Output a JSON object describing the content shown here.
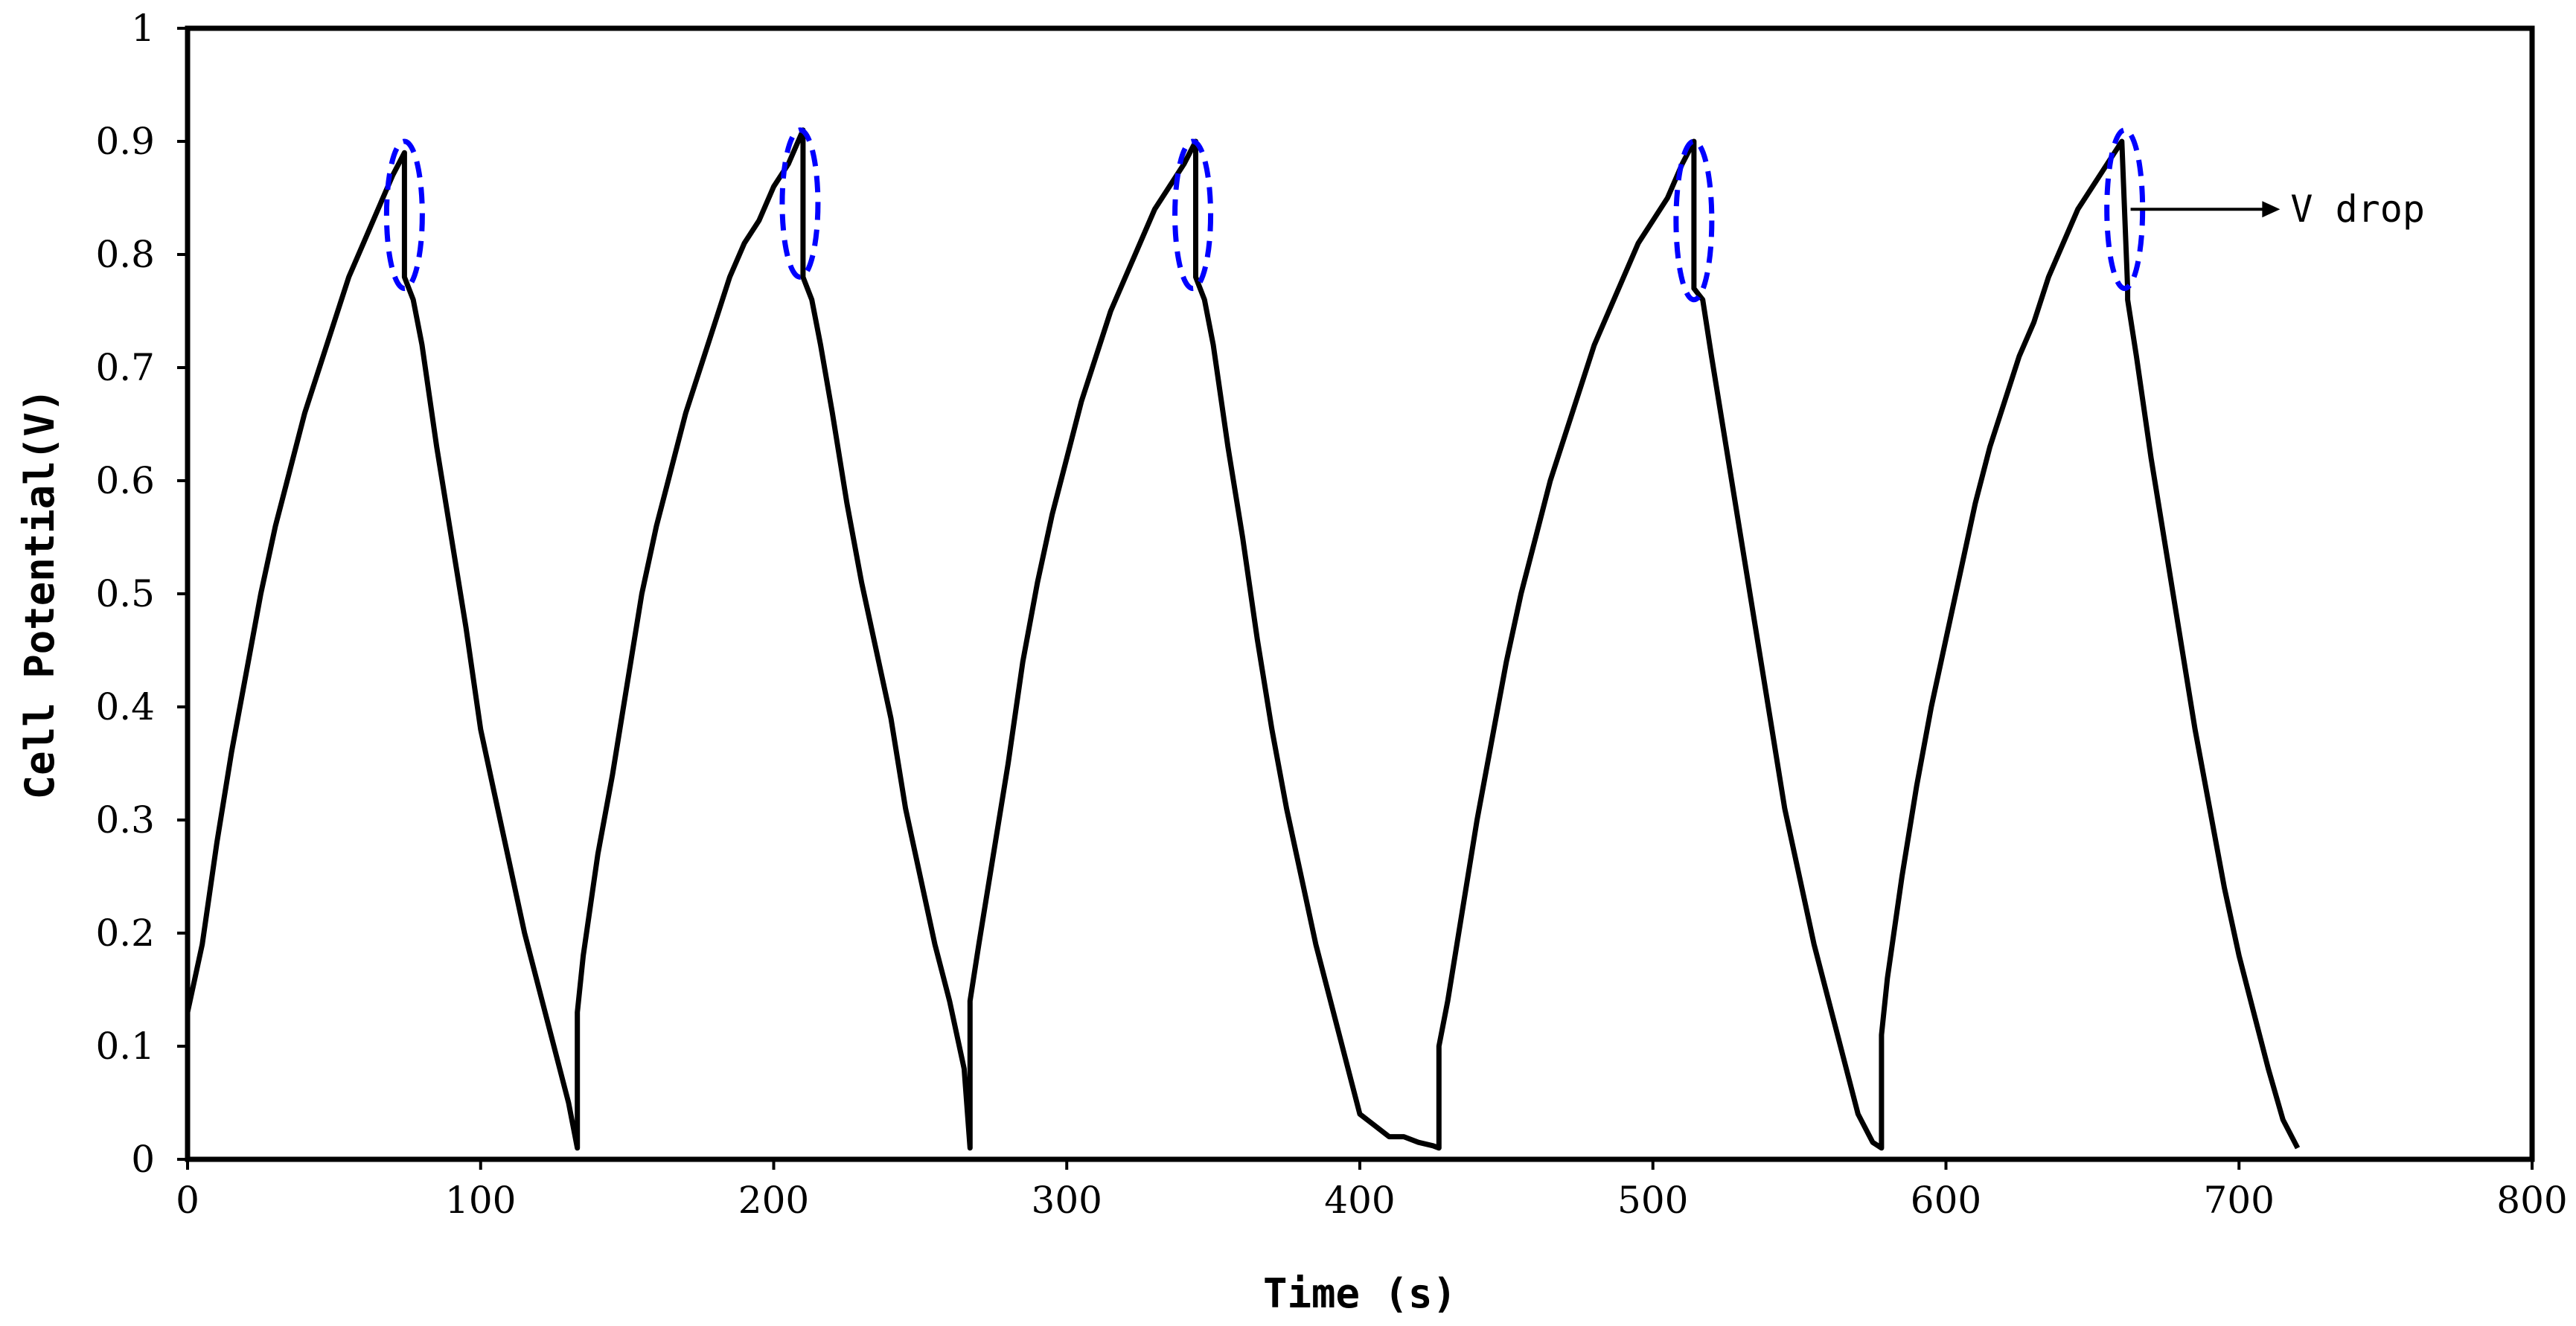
{
  "chart_data": {
    "type": "line",
    "title": "",
    "xlabel": "Time (s)",
    "ylabel": "Cell Potential(V)",
    "xlim": [
      0,
      800
    ],
    "ylim": [
      0,
      1
    ],
    "xticks": [
      0,
      100,
      200,
      300,
      400,
      500,
      600,
      700,
      800
    ],
    "xtick_labels": [
      "0",
      "100",
      "200",
      "300",
      "400",
      "500",
      "600",
      "700",
      "800"
    ],
    "yticks": [
      0,
      0.1,
      0.2,
      0.3,
      0.4,
      0.5,
      0.6,
      0.7,
      0.8,
      0.9,
      1
    ],
    "ytick_labels": [
      "0",
      "0.1",
      "0.2",
      "0.3",
      "0.4",
      "0.5",
      "0.6",
      "0.7",
      "0.8",
      "0.9",
      "1"
    ],
    "grid": false,
    "legend": "none",
    "series": [
      {
        "color": "#000000",
        "x": [
          0,
          5,
          10,
          15,
          20,
          25,
          30,
          35,
          40,
          45,
          50,
          55,
          60,
          65,
          70,
          74,
          74,
          77,
          80,
          85,
          90,
          95,
          100,
          105,
          110,
          115,
          120,
          125,
          130,
          133,
          133,
          135,
          140,
          145,
          150,
          155,
          160,
          165,
          170,
          175,
          180,
          185,
          190,
          195,
          200,
          205,
          210,
          210,
          213,
          216,
          220,
          225,
          230,
          235,
          240,
          245,
          250,
          255,
          260,
          265,
          267,
          267,
          270,
          275,
          280,
          285,
          290,
          295,
          300,
          305,
          310,
          315,
          320,
          325,
          330,
          335,
          340,
          344,
          344,
          347,
          350,
          355,
          360,
          365,
          370,
          375,
          380,
          385,
          390,
          395,
          400,
          405,
          410,
          415,
          420,
          425,
          427,
          427,
          430,
          435,
          440,
          445,
          450,
          455,
          460,
          465,
          470,
          475,
          480,
          485,
          490,
          495,
          500,
          505,
          510,
          514,
          514,
          517,
          520,
          525,
          530,
          535,
          540,
          545,
          550,
          555,
          560,
          565,
          570,
          575,
          578,
          578,
          580,
          585,
          590,
          595,
          600,
          605,
          610,
          615,
          620,
          625,
          630,
          635,
          640,
          645,
          650,
          655,
          660,
          662,
          662,
          665,
          670,
          675,
          680,
          685,
          690,
          695,
          700,
          705,
          710,
          715,
          720
        ],
        "y": [
          0.13,
          0.19,
          0.28,
          0.36,
          0.43,
          0.5,
          0.56,
          0.61,
          0.66,
          0.7,
          0.74,
          0.78,
          0.81,
          0.84,
          0.87,
          0.89,
          0.78,
          0.76,
          0.72,
          0.63,
          0.55,
          0.47,
          0.38,
          0.32,
          0.26,
          0.2,
          0.15,
          0.1,
          0.05,
          0.01,
          0.13,
          0.18,
          0.27,
          0.34,
          0.42,
          0.5,
          0.56,
          0.61,
          0.66,
          0.7,
          0.74,
          0.78,
          0.81,
          0.83,
          0.86,
          0.88,
          0.91,
          0.78,
          0.76,
          0.72,
          0.66,
          0.58,
          0.51,
          0.45,
          0.39,
          0.31,
          0.25,
          0.19,
          0.14,
          0.08,
          0.01,
          0.14,
          0.19,
          0.27,
          0.35,
          0.44,
          0.51,
          0.57,
          0.62,
          0.67,
          0.71,
          0.75,
          0.78,
          0.81,
          0.84,
          0.86,
          0.88,
          0.9,
          0.78,
          0.76,
          0.72,
          0.63,
          0.55,
          0.46,
          0.38,
          0.31,
          0.25,
          0.19,
          0.14,
          0.09,
          0.04,
          0.03,
          0.02,
          0.02,
          0.015,
          0.012,
          0.01,
          0.1,
          0.14,
          0.22,
          0.3,
          0.37,
          0.44,
          0.5,
          0.55,
          0.6,
          0.64,
          0.68,
          0.72,
          0.75,
          0.78,
          0.81,
          0.83,
          0.85,
          0.88,
          0.9,
          0.77,
          0.76,
          0.71,
          0.63,
          0.55,
          0.47,
          0.39,
          0.31,
          0.25,
          0.19,
          0.14,
          0.09,
          0.04,
          0.015,
          0.01,
          0.11,
          0.16,
          0.25,
          0.33,
          0.4,
          0.46,
          0.52,
          0.58,
          0.63,
          0.67,
          0.71,
          0.74,
          0.78,
          0.81,
          0.84,
          0.86,
          0.88,
          0.9,
          0.77,
          0.76,
          0.71,
          0.62,
          0.54,
          0.46,
          0.38,
          0.31,
          0.24,
          0.18,
          0.13,
          0.08,
          0.035,
          0.01
        ]
      }
    ],
    "markers": [
      {
        "x": 74,
        "y_low": 0.77,
        "y_high": 0.9,
        "color": "#0000ff"
      },
      {
        "x": 209,
        "y_low": 0.78,
        "y_high": 0.91,
        "color": "#0000ff"
      },
      {
        "x": 343,
        "y_low": 0.77,
        "y_high": 0.9,
        "color": "#0000ff"
      },
      {
        "x": 514,
        "y_low": 0.76,
        "y_high": 0.9,
        "color": "#0000ff"
      },
      {
        "x": 661,
        "y_low": 0.77,
        "y_high": 0.91,
        "color": "#0000ff"
      }
    ],
    "annotation": {
      "text": "V drop",
      "arrow_from": [
        663,
        0.84
      ],
      "arrow_to": [
        714,
        0.84
      ]
    }
  }
}
